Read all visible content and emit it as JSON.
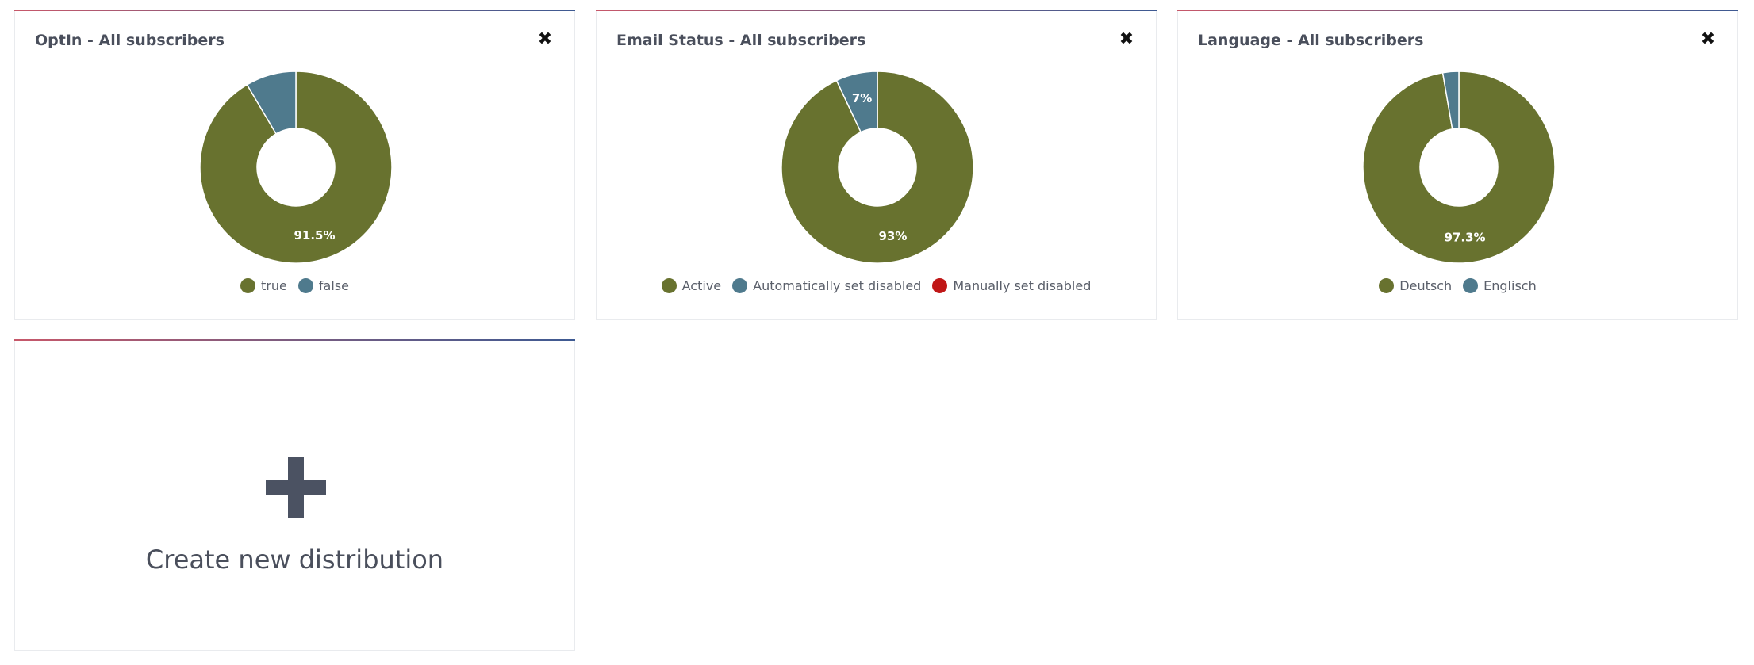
{
  "colors": {
    "olive": "#68722f",
    "steel": "#4f7a8d",
    "red": "#c01717"
  },
  "close_icon": "close-icon",
  "close_glyph": "✖",
  "chart_data": [
    {
      "type": "pie",
      "title": "OptIn - All subscribers",
      "categories": [
        "true",
        "false"
      ],
      "values": [
        91.5,
        8.5
      ],
      "slice_labels": [
        "91.5%",
        ""
      ],
      "colors": [
        "#68722f",
        "#4f7a8d"
      ],
      "legend": "bottom"
    },
    {
      "type": "pie",
      "title": "Email Status - All subscribers",
      "categories": [
        "Active",
        "Automatically set disabled",
        "Manually set disabled"
      ],
      "values": [
        93,
        7,
        0
      ],
      "slice_labels": [
        "93%",
        "7%",
        ""
      ],
      "colors": [
        "#68722f",
        "#4f7a8d",
        "#c01717"
      ],
      "legend": "bottom"
    },
    {
      "type": "pie",
      "title": "Language - All subscribers",
      "categories": [
        "Deutsch",
        "Englisch"
      ],
      "values": [
        97.3,
        2.7
      ],
      "slice_labels": [
        "97.3%",
        ""
      ],
      "colors": [
        "#68722f",
        "#4f7a8d"
      ],
      "legend": "bottom"
    }
  ],
  "new_card": {
    "label": "Create new distribution",
    "icon": "plus-icon"
  }
}
